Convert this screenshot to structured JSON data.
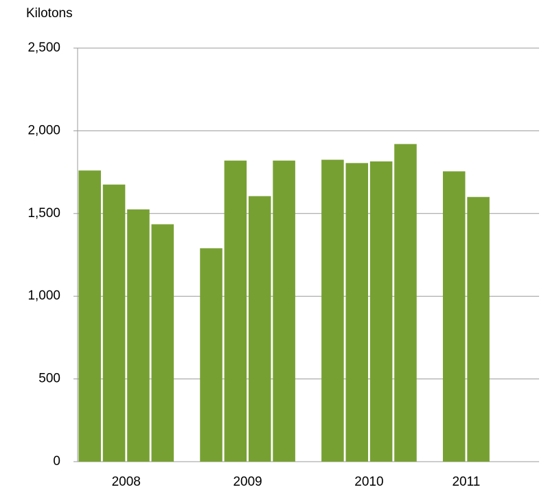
{
  "chart_data": {
    "type": "bar",
    "axis_label": "Kilotons",
    "categories": [
      "2008",
      "2009",
      "2010",
      "2011"
    ],
    "values": [
      [
        1760,
        1675,
        1525,
        1435
      ],
      [
        1290,
        1820,
        1605,
        1820
      ],
      [
        1825,
        1805,
        1815,
        1920
      ],
      [
        1755,
        1600,
        null,
        null
      ]
    ],
    "color": "#77a033",
    "ylim": [
      0,
      2500
    ],
    "yticks": [
      0,
      {
        "value": 500,
        "label": "500"
      },
      {
        "value": 1000,
        "label": "1,000"
      },
      {
        "value": 1500,
        "label": "1,500"
      },
      {
        "value": 2000,
        "label": "2,000"
      },
      {
        "value": 2500,
        "label": "2,500"
      }
    ],
    "grid": true
  }
}
